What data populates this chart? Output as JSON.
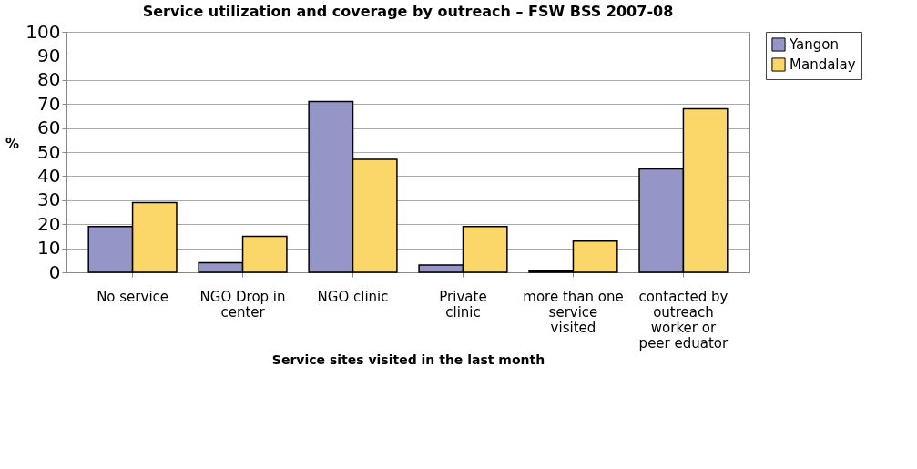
{
  "chart_data": {
    "type": "bar",
    "title": "Service utilization and coverage by outreach – FSW BSS 2007-08",
    "xlabel": "Service sites visited in the last month",
    "ylabel": "%",
    "categories": [
      "No service",
      "NGO Drop in center",
      "NGO clinic",
      "Private clinic",
      "more than one service visited",
      "contacted by outreach worker or peer eduator"
    ],
    "series": [
      {
        "name": "Yangon",
        "color": "#9595c8",
        "values": [
          19,
          4,
          71,
          3,
          0.5,
          43
        ]
      },
      {
        "name": "Mandalay",
        "color": "#fbd76a",
        "values": [
          29,
          15,
          47,
          19,
          13,
          68
        ]
      }
    ],
    "ylim": [
      0,
      100
    ],
    "yticks": [
      0,
      10,
      20,
      30,
      40,
      50,
      60,
      70,
      80,
      90,
      100
    ],
    "grid": "y",
    "legend": "right"
  }
}
